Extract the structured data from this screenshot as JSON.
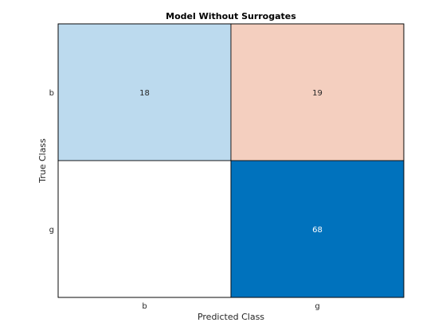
{
  "chart_data": {
    "type": "heatmap",
    "title": "Model Without Surrogates",
    "xlabel": "Predicted Class",
    "ylabel": "True Class",
    "x_categories": [
      "b",
      "g"
    ],
    "y_categories": [
      "b",
      "g"
    ],
    "matrix": [
      [
        18,
        19
      ],
      [
        null,
        68
      ]
    ],
    "cells": [
      {
        "row": 0,
        "col": 0,
        "label": "18"
      },
      {
        "row": 0,
        "col": 1,
        "label": "19"
      },
      {
        "row": 1,
        "col": 1,
        "label": "68"
      }
    ],
    "colors": {
      "diagonal_max": "#0072bd",
      "diagonal_min": "#ffffff",
      "offdiagonal_max": "#d95319",
      "offdiagonal_min": "#ffffff",
      "cell_border": "#000000",
      "text_dark": "#262626",
      "text_light": "#ffffff"
    },
    "grid": false,
    "legend": "none"
  }
}
